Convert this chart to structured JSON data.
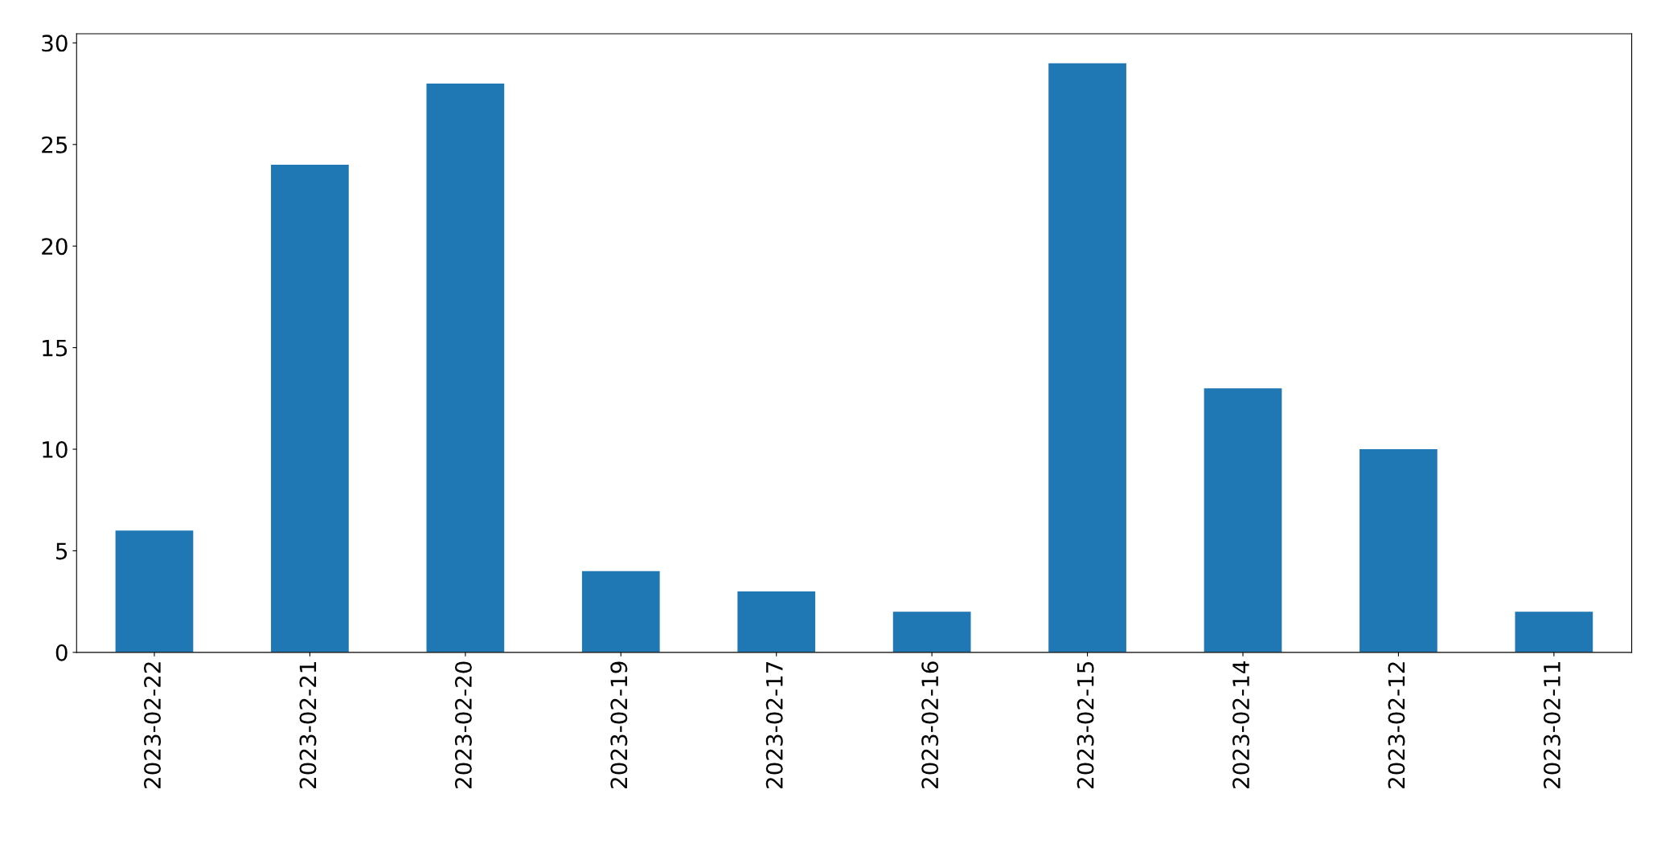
{
  "chart_data": {
    "type": "bar",
    "categories": [
      "2023-02-22",
      "2023-02-21",
      "2023-02-20",
      "2023-02-19",
      "2023-02-17",
      "2023-02-16",
      "2023-02-15",
      "2023-02-14",
      "2023-02-12",
      "2023-02-11"
    ],
    "values": [
      6,
      24,
      28,
      4,
      3,
      2,
      29,
      13,
      10,
      2
    ],
    "color": "#1f77b4",
    "ylim": [
      0,
      30.45
    ],
    "yticks": [
      0,
      5,
      10,
      15,
      20,
      25,
      30
    ],
    "grid": false,
    "legend": false
  }
}
